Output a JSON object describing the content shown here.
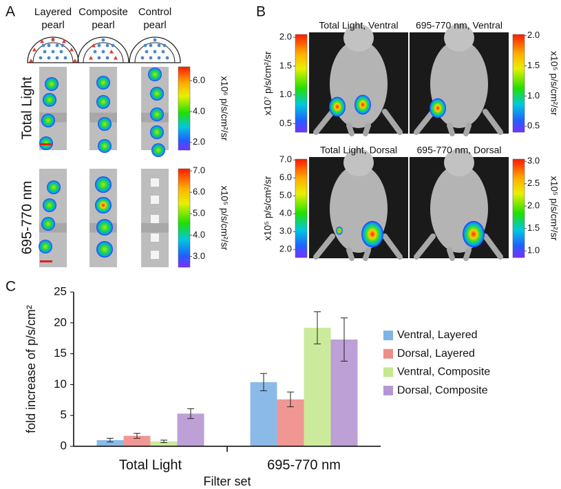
{
  "panel_a": {
    "label": "A",
    "columns": [
      [
        "Layered",
        "pearl"
      ],
      [
        "Composite",
        "pearl"
      ],
      [
        "Control",
        "pearl"
      ]
    ],
    "rows": [
      "Total Light",
      "695-770 nm"
    ],
    "colorbars": [
      {
        "label": "x10⁶ p/s/cm²/sr",
        "lim": [
          1.5,
          6.9
        ],
        "ticks": [
          {
            "value": 6,
            "label": "6.0"
          },
          {
            "value": 4,
            "label": "4.0"
          },
          {
            "value": 2,
            "label": "2.0"
          }
        ]
      },
      {
        "label": "x10⁵ p/s/cm²/sr",
        "lim": [
          2.5,
          7.1
        ],
        "ticks": [
          {
            "value": 7,
            "label": "7.0"
          },
          {
            "value": 6,
            "label": "6.0"
          },
          {
            "value": 5,
            "label": "5.0"
          },
          {
            "value": 4,
            "label": "4.0"
          },
          {
            "value": 3,
            "label": "3.0"
          }
        ]
      }
    ]
  },
  "panel_b": {
    "label": "B",
    "titles": [
      "Total Light, Ventral",
      "695-770 nm, Ventral",
      "Total Light, Dorsal",
      "695-770 nm, Dorsal"
    ],
    "colorbars": [
      {
        "label": "x10⁷ p/s/cm²/sr",
        "lim": [
          0.35,
          2.05
        ],
        "ticks": [
          {
            "value": 2,
            "label": "2.0"
          },
          {
            "value": 1.5,
            "label": "1.5"
          },
          {
            "value": 1,
            "label": "1.0"
          },
          {
            "value": 0.5,
            "label": "0.5"
          }
        ]
      },
      {
        "label": "x10⁵ p/s/cm²/sr",
        "lim": [
          0.4,
          2.02
        ],
        "ticks": [
          {
            "value": 2,
            "label": "2.0"
          },
          {
            "value": 1.5,
            "label": "1.5"
          },
          {
            "value": 1,
            "label": "1.0"
          },
          {
            "value": 0.5,
            "label": "0.5"
          }
        ]
      },
      {
        "label": "x10⁵ p/s/cm²/sr",
        "lim": [
          1.55,
          7.05
        ],
        "ticks": [
          {
            "value": 7,
            "label": "7.0"
          },
          {
            "value": 6,
            "label": "6.0"
          },
          {
            "value": 5,
            "label": "5.0"
          },
          {
            "value": 4,
            "label": "4.0"
          },
          {
            "value": 3,
            "label": "3.0"
          },
          {
            "value": 2,
            "label": "2.0"
          }
        ]
      },
      {
        "label": "x10⁵ p/s/cm²/sr",
        "lim": [
          0.85,
          3.05
        ],
        "ticks": [
          {
            "value": 3,
            "label": "3.0"
          },
          {
            "value": 2.5,
            "label": "2.5"
          },
          {
            "value": 2,
            "label": "2.0"
          },
          {
            "value": 1.5,
            "label": "1.5"
          },
          {
            "value": 1,
            "label": "1.0"
          }
        ]
      }
    ]
  },
  "chart_data": {
    "type": "bar",
    "panel_label": "C",
    "xlabel": "Filter set",
    "ylabel": "fold increase of p/s/cm²",
    "categories": [
      "Total Light",
      "695-770 nm"
    ],
    "series": [
      {
        "name": "Ventral, Layered",
        "color": "#80b3e6",
        "values": [
          1.0,
          10.4
        ],
        "errors": [
          0.3,
          1.4
        ]
      },
      {
        "name": "Dorsal, Layered",
        "color": "#ee8c88",
        "values": [
          1.7,
          7.6
        ],
        "errors": [
          0.4,
          1.2
        ]
      },
      {
        "name": "Ventral, Composite",
        "color": "#c6e890",
        "values": [
          0.8,
          19.2
        ],
        "errors": [
          0.2,
          2.6
        ]
      },
      {
        "name": "Dorsal, Composite",
        "color": "#b596d2",
        "values": [
          5.3,
          17.3
        ],
        "errors": [
          0.8,
          3.5
        ]
      }
    ],
    "ylim": [
      0,
      25
    ],
    "yticks": [
      0,
      5,
      10,
      15,
      20,
      25
    ]
  }
}
